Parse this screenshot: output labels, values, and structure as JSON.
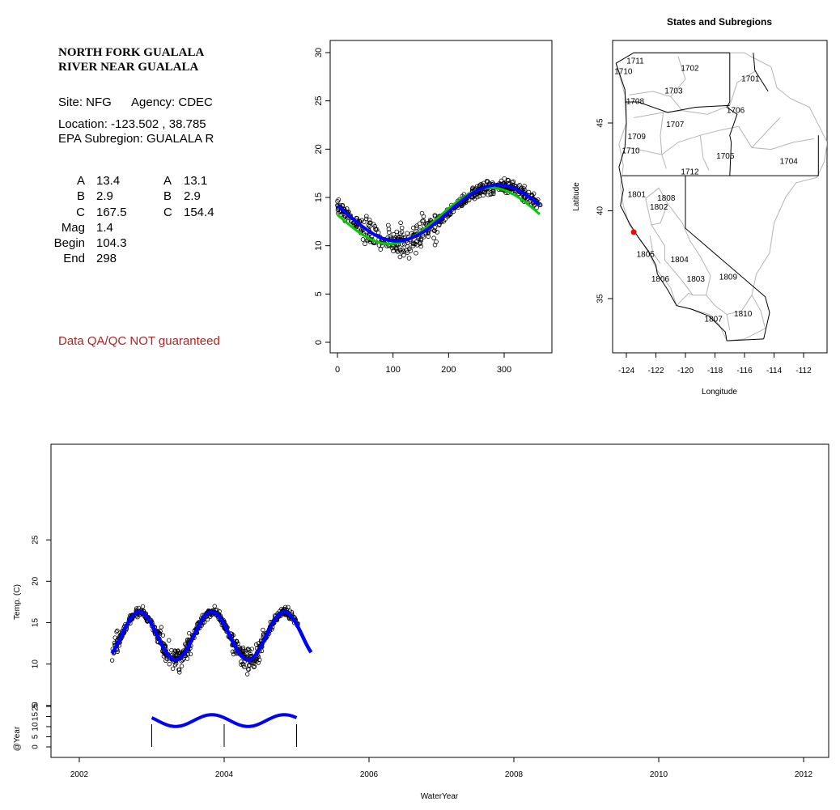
{
  "site": {
    "title_line1": "NORTH FORK GUALALA",
    "title_line2": "RIVER NEAR GUALALA",
    "site_label": "Site: NFG",
    "agency_label": "Agency: CDEC",
    "location_label": "Location: -123.502 , 38.785",
    "subregion_label": "EPA Subregion: GUALALA R",
    "qa_note": "Data QA/QC NOT guaranteed",
    "qa_color": "#b22222"
  },
  "params": {
    "rows": [
      {
        "label": "A",
        "v1": "13.4",
        "l2": "A",
        "v2": "13.1"
      },
      {
        "label": "B",
        "v1": "2.9",
        "l2": "B",
        "v2": "2.9"
      },
      {
        "label": "C",
        "v1": "167.5",
        "l2": "C",
        "v2": "154.4"
      },
      {
        "label": "Mag",
        "v1": "1.4",
        "l2": "",
        "v2": ""
      },
      {
        "label": "Begin",
        "v1": "104.3",
        "l2": "",
        "v2": ""
      },
      {
        "label": "End",
        "v1": "298",
        "l2": "",
        "v2": ""
      }
    ]
  },
  "chart_data": [
    {
      "type": "scatter",
      "title": "",
      "xlabel": "",
      "ylabel": "",
      "xlim": [
        0,
        365
      ],
      "ylim": [
        0,
        30
      ],
      "xticks": [
        "0",
        "100",
        "200",
        "300"
      ],
      "yticks": [
        "0",
        "5",
        "10",
        "15",
        "20",
        "25",
        "30"
      ],
      "series": [
        {
          "kind": "points",
          "color": "#000000",
          "description_model": {
            "mean": 13.3,
            "amplitude": 2.9,
            "peak_day": 290
          }
        },
        {
          "kind": "fit",
          "color": "#0000ff",
          "mean": 13.4,
          "amplitude": 2.9,
          "peak_day": 289
        },
        {
          "kind": "fit",
          "color": "#00cc00",
          "mean": 13.1,
          "amplitude": 2.9,
          "peak_day": 276
        }
      ]
    },
    {
      "type": "map",
      "title": "States and Subregions",
      "xlabel": "Longitude",
      "ylabel": "Latitude",
      "xlim": [
        -125.5,
        -110.5
      ],
      "ylim": [
        32.5,
        49.5
      ],
      "xticks": [
        "-124",
        "-122",
        "-120",
        "-118",
        "-116",
        "-114",
        "-112"
      ],
      "yticks": [
        "35",
        "40",
        "45"
      ],
      "regions": [
        {
          "label": "1711",
          "lon": -123.4,
          "lat": 48.5
        },
        {
          "label": "1710",
          "lon": -124.2,
          "lat": 47.9
        },
        {
          "label": "1702",
          "lon": -119.7,
          "lat": 48.1
        },
        {
          "label": "1701",
          "lon": -115.6,
          "lat": 47.5
        },
        {
          "label": "1703",
          "lon": -120.8,
          "lat": 46.8
        },
        {
          "label": "1708",
          "lon": -123.4,
          "lat": 46.2
        },
        {
          "label": "1706",
          "lon": -116.6,
          "lat": 45.7
        },
        {
          "label": "1707",
          "lon": -120.7,
          "lat": 44.9
        },
        {
          "label": "1709",
          "lon": -123.3,
          "lat": 44.2
        },
        {
          "label": "1710",
          "lon": -123.7,
          "lat": 43.4
        },
        {
          "label": "1705",
          "lon": -117.3,
          "lat": 43.1
        },
        {
          "label": "1704",
          "lon": -113.0,
          "lat": 42.8
        },
        {
          "label": "1712",
          "lon": -119.7,
          "lat": 42.2
        },
        {
          "label": "1801",
          "lon": -123.3,
          "lat": 40.9
        },
        {
          "label": "1808",
          "lon": -121.3,
          "lat": 40.7
        },
        {
          "label": "1802",
          "lon": -121.8,
          "lat": 40.2
        },
        {
          "label": "1805",
          "lon": -122.7,
          "lat": 37.5
        },
        {
          "label": "1804",
          "lon": -120.4,
          "lat": 37.2
        },
        {
          "label": "1806",
          "lon": -121.7,
          "lat": 36.1
        },
        {
          "label": "1803",
          "lon": -119.3,
          "lat": 36.1
        },
        {
          "label": "1809",
          "lon": -117.1,
          "lat": 36.2
        },
        {
          "label": "1810",
          "lon": -116.1,
          "lat": 34.1
        },
        {
          "label": "1807",
          "lon": -118.1,
          "lat": 33.8
        }
      ],
      "site_point": {
        "lon": -123.502,
        "lat": 38.785,
        "color": "#ff0000"
      }
    },
    {
      "type": "scatter",
      "title": "",
      "xlabel": "WaterYear",
      "ylabel": "Temp. (C)",
      "ylabel2": "@Year",
      "xlim": [
        2001.05,
        2012.45
      ],
      "ylim": [
        -1,
        33
      ],
      "xticks": [
        "2002",
        "2004",
        "2006",
        "2008",
        "2010",
        "2012"
      ],
      "yticks": [
        "5",
        "10",
        "15",
        "20",
        "25"
      ],
      "yticks2": [
        "0",
        "5",
        "10",
        "15",
        "20"
      ],
      "data_range": [
        2002.45,
        2005.2
      ],
      "fit": {
        "mean": 13.4,
        "amplitude": 2.9,
        "period": 1.0,
        "peak_phase": 0.83,
        "color": "#0000ff"
      },
      "annual_fits": [
        {
          "water_year": "2003",
          "x": 2003.0
        },
        {
          "water_year": "2004",
          "x": 2004.0
        },
        {
          "water_year": "2005",
          "x": 2005.0
        }
      ]
    }
  ]
}
